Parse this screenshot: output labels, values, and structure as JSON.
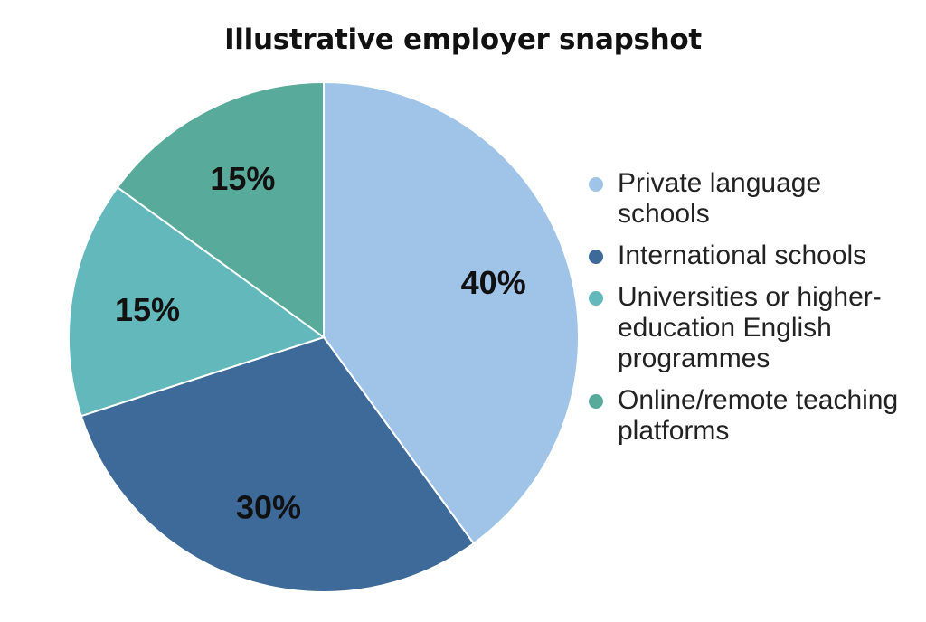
{
  "chart_data": {
    "type": "pie",
    "title": "Illustrative employer snapshot",
    "legend_position": "right",
    "slices": [
      {
        "name": "Private language schools",
        "value": 40,
        "label": "40%",
        "color": "#a0c4e8"
      },
      {
        "name": "International schools",
        "value": 30,
        "label": "30%",
        "color": "#3d6a99"
      },
      {
        "name": "Universities or higher-education English programmes",
        "value": 15,
        "label": "15%",
        "color": "#62b8ba"
      },
      {
        "name": "Online/remote teaching platforms",
        "value": 15,
        "label": "15%",
        "color": "#58aa9a"
      }
    ]
  }
}
